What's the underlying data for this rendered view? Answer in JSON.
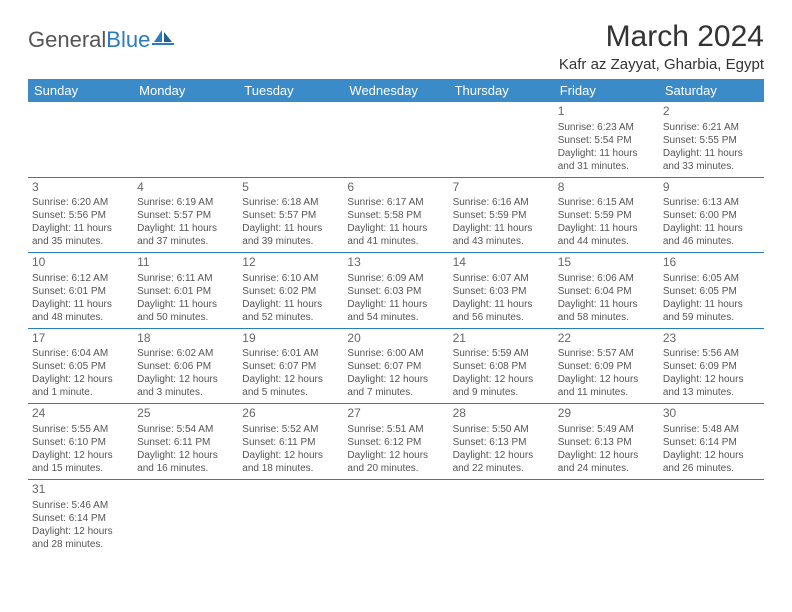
{
  "logo": {
    "main": "General",
    "accent": "Blue"
  },
  "title": "March 2024",
  "location": "Kafr az Zayyat, Gharbia, Egypt",
  "colors": {
    "header_bg": "#3b8bc8",
    "header_text": "#ffffff",
    "rule": "#2a7bbf",
    "body_text": "#555555",
    "title_text": "#333333",
    "logo_gray": "#555555",
    "logo_blue": "#2a7bbf",
    "page_bg": "#ffffff"
  },
  "typography": {
    "title_fontsize": 30,
    "location_fontsize": 15,
    "dayheader_fontsize": 13,
    "daynum_fontsize": 12,
    "body_fontsize": 10
  },
  "day_headers": [
    "Sunday",
    "Monday",
    "Tuesday",
    "Wednesday",
    "Thursday",
    "Friday",
    "Saturday"
  ],
  "weeks": [
    [
      null,
      null,
      null,
      null,
      null,
      {
        "n": "1",
        "rise": "Sunrise: 6:23 AM",
        "set": "Sunset: 5:54 PM",
        "day": "Daylight: 11 hours and 31 minutes."
      },
      {
        "n": "2",
        "rise": "Sunrise: 6:21 AM",
        "set": "Sunset: 5:55 PM",
        "day": "Daylight: 11 hours and 33 minutes."
      }
    ],
    [
      {
        "n": "3",
        "rise": "Sunrise: 6:20 AM",
        "set": "Sunset: 5:56 PM",
        "day": "Daylight: 11 hours and 35 minutes."
      },
      {
        "n": "4",
        "rise": "Sunrise: 6:19 AM",
        "set": "Sunset: 5:57 PM",
        "day": "Daylight: 11 hours and 37 minutes."
      },
      {
        "n": "5",
        "rise": "Sunrise: 6:18 AM",
        "set": "Sunset: 5:57 PM",
        "day": "Daylight: 11 hours and 39 minutes."
      },
      {
        "n": "6",
        "rise": "Sunrise: 6:17 AM",
        "set": "Sunset: 5:58 PM",
        "day": "Daylight: 11 hours and 41 minutes."
      },
      {
        "n": "7",
        "rise": "Sunrise: 6:16 AM",
        "set": "Sunset: 5:59 PM",
        "day": "Daylight: 11 hours and 43 minutes."
      },
      {
        "n": "8",
        "rise": "Sunrise: 6:15 AM",
        "set": "Sunset: 5:59 PM",
        "day": "Daylight: 11 hours and 44 minutes."
      },
      {
        "n": "9",
        "rise": "Sunrise: 6:13 AM",
        "set": "Sunset: 6:00 PM",
        "day": "Daylight: 11 hours and 46 minutes."
      }
    ],
    [
      {
        "n": "10",
        "rise": "Sunrise: 6:12 AM",
        "set": "Sunset: 6:01 PM",
        "day": "Daylight: 11 hours and 48 minutes."
      },
      {
        "n": "11",
        "rise": "Sunrise: 6:11 AM",
        "set": "Sunset: 6:01 PM",
        "day": "Daylight: 11 hours and 50 minutes."
      },
      {
        "n": "12",
        "rise": "Sunrise: 6:10 AM",
        "set": "Sunset: 6:02 PM",
        "day": "Daylight: 11 hours and 52 minutes."
      },
      {
        "n": "13",
        "rise": "Sunrise: 6:09 AM",
        "set": "Sunset: 6:03 PM",
        "day": "Daylight: 11 hours and 54 minutes."
      },
      {
        "n": "14",
        "rise": "Sunrise: 6:07 AM",
        "set": "Sunset: 6:03 PM",
        "day": "Daylight: 11 hours and 56 minutes."
      },
      {
        "n": "15",
        "rise": "Sunrise: 6:06 AM",
        "set": "Sunset: 6:04 PM",
        "day": "Daylight: 11 hours and 58 minutes."
      },
      {
        "n": "16",
        "rise": "Sunrise: 6:05 AM",
        "set": "Sunset: 6:05 PM",
        "day": "Daylight: 11 hours and 59 minutes."
      }
    ],
    [
      {
        "n": "17",
        "rise": "Sunrise: 6:04 AM",
        "set": "Sunset: 6:05 PM",
        "day": "Daylight: 12 hours and 1 minute."
      },
      {
        "n": "18",
        "rise": "Sunrise: 6:02 AM",
        "set": "Sunset: 6:06 PM",
        "day": "Daylight: 12 hours and 3 minutes."
      },
      {
        "n": "19",
        "rise": "Sunrise: 6:01 AM",
        "set": "Sunset: 6:07 PM",
        "day": "Daylight: 12 hours and 5 minutes."
      },
      {
        "n": "20",
        "rise": "Sunrise: 6:00 AM",
        "set": "Sunset: 6:07 PM",
        "day": "Daylight: 12 hours and 7 minutes."
      },
      {
        "n": "21",
        "rise": "Sunrise: 5:59 AM",
        "set": "Sunset: 6:08 PM",
        "day": "Daylight: 12 hours and 9 minutes."
      },
      {
        "n": "22",
        "rise": "Sunrise: 5:57 AM",
        "set": "Sunset: 6:09 PM",
        "day": "Daylight: 12 hours and 11 minutes."
      },
      {
        "n": "23",
        "rise": "Sunrise: 5:56 AM",
        "set": "Sunset: 6:09 PM",
        "day": "Daylight: 12 hours and 13 minutes."
      }
    ],
    [
      {
        "n": "24",
        "rise": "Sunrise: 5:55 AM",
        "set": "Sunset: 6:10 PM",
        "day": "Daylight: 12 hours and 15 minutes."
      },
      {
        "n": "25",
        "rise": "Sunrise: 5:54 AM",
        "set": "Sunset: 6:11 PM",
        "day": "Daylight: 12 hours and 16 minutes."
      },
      {
        "n": "26",
        "rise": "Sunrise: 5:52 AM",
        "set": "Sunset: 6:11 PM",
        "day": "Daylight: 12 hours and 18 minutes."
      },
      {
        "n": "27",
        "rise": "Sunrise: 5:51 AM",
        "set": "Sunset: 6:12 PM",
        "day": "Daylight: 12 hours and 20 minutes."
      },
      {
        "n": "28",
        "rise": "Sunrise: 5:50 AM",
        "set": "Sunset: 6:13 PM",
        "day": "Daylight: 12 hours and 22 minutes."
      },
      {
        "n": "29",
        "rise": "Sunrise: 5:49 AM",
        "set": "Sunset: 6:13 PM",
        "day": "Daylight: 12 hours and 24 minutes."
      },
      {
        "n": "30",
        "rise": "Sunrise: 5:48 AM",
        "set": "Sunset: 6:14 PM",
        "day": "Daylight: 12 hours and 26 minutes."
      }
    ],
    [
      {
        "n": "31",
        "rise": "Sunrise: 5:46 AM",
        "set": "Sunset: 6:14 PM",
        "day": "Daylight: 12 hours and 28 minutes."
      },
      null,
      null,
      null,
      null,
      null,
      null
    ]
  ]
}
